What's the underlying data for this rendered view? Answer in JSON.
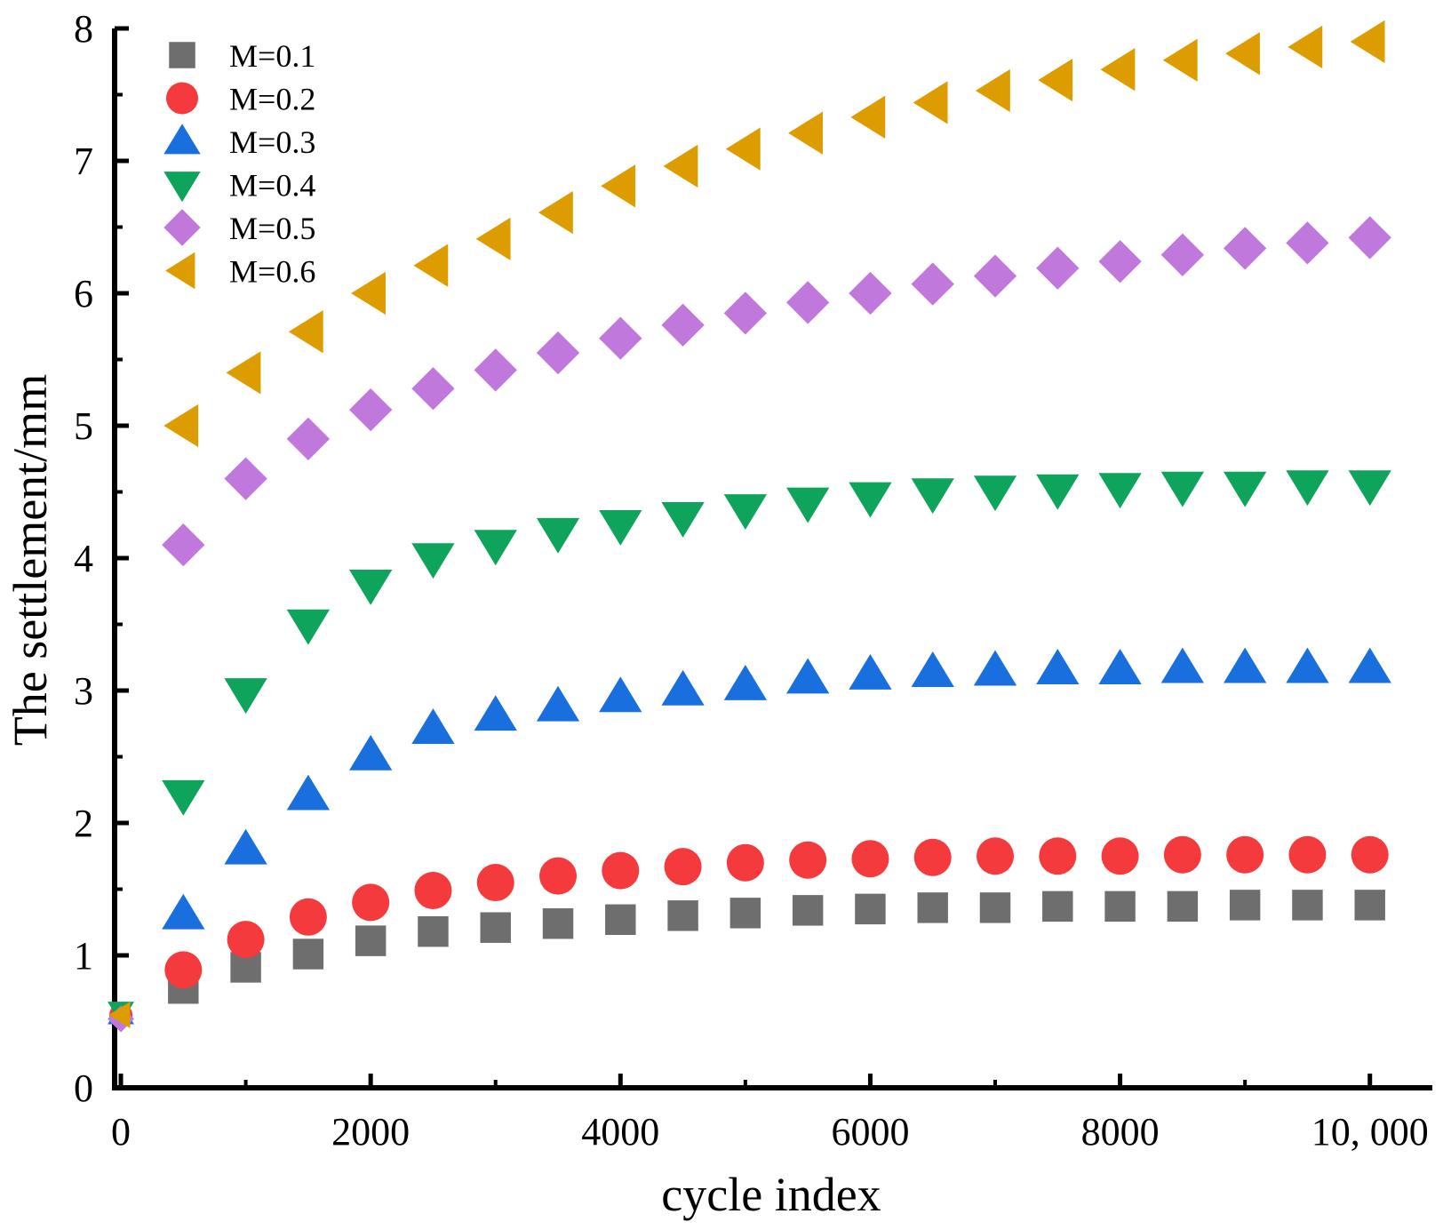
{
  "chart_data": {
    "type": "scatter",
    "title": "",
    "xlabel": "cycle index",
    "ylabel": "The settlement/mm",
    "xlim": [
      -50,
      10500
    ],
    "ylim": [
      0,
      8
    ],
    "x_ticks": [
      0,
      2000,
      4000,
      6000,
      8000,
      10000
    ],
    "x_tick_labels": [
      "0",
      "2000",
      "4000",
      "6000",
      "8000",
      "10, 000"
    ],
    "y_ticks": [
      0,
      1,
      2,
      3,
      4,
      5,
      6,
      7,
      8
    ],
    "y_tick_labels": [
      "0",
      "1",
      "2",
      "3",
      "4",
      "5",
      "6",
      "7",
      "8"
    ],
    "grid": false,
    "legend_position": "top-left",
    "x": [
      0,
      500,
      1000,
      1500,
      2000,
      2500,
      3000,
      3500,
      4000,
      4500,
      5000,
      5500,
      6000,
      6500,
      7000,
      7500,
      8000,
      8500,
      9000,
      9500,
      10000
    ],
    "series": [
      {
        "name": "M=0.1",
        "marker": "square",
        "color": "#6e6e6e",
        "values": [
          0.55,
          0.75,
          0.91,
          1.01,
          1.11,
          1.18,
          1.21,
          1.24,
          1.27,
          1.3,
          1.32,
          1.34,
          1.35,
          1.36,
          1.36,
          1.37,
          1.37,
          1.37,
          1.38,
          1.38,
          1.38
        ]
      },
      {
        "name": "M=0.2",
        "marker": "circle",
        "color": "#f43a3c",
        "values": [
          0.55,
          0.89,
          1.12,
          1.29,
          1.4,
          1.49,
          1.55,
          1.6,
          1.64,
          1.67,
          1.7,
          1.72,
          1.73,
          1.74,
          1.75,
          1.75,
          1.75,
          1.76,
          1.76,
          1.76,
          1.76
        ]
      },
      {
        "name": "M=0.3",
        "marker": "triangle-up",
        "color": "#1a6fdf",
        "values": [
          0.55,
          1.31,
          1.8,
          2.21,
          2.51,
          2.71,
          2.81,
          2.88,
          2.95,
          3.0,
          3.04,
          3.09,
          3.12,
          3.14,
          3.15,
          3.16,
          3.16,
          3.17,
          3.17,
          3.17,
          3.17
        ]
      },
      {
        "name": "M=0.4",
        "marker": "triangle-down",
        "color": "#0fa45c",
        "values": [
          0.58,
          2.21,
          2.98,
          3.5,
          3.8,
          4.0,
          4.1,
          4.19,
          4.25,
          4.31,
          4.37,
          4.42,
          4.46,
          4.49,
          4.51,
          4.52,
          4.53,
          4.54,
          4.54,
          4.55,
          4.55
        ]
      },
      {
        "name": "M=0.5",
        "marker": "diamond",
        "color": "#c078dd",
        "values": [
          0.52,
          4.1,
          4.6,
          4.9,
          5.12,
          5.28,
          5.42,
          5.55,
          5.66,
          5.76,
          5.85,
          5.93,
          6.0,
          6.07,
          6.13,
          6.19,
          6.24,
          6.29,
          6.34,
          6.38,
          6.42
        ]
      },
      {
        "name": "M=0.6",
        "marker": "triangle-left",
        "color": "#dd9d00",
        "values": [
          0.55,
          5.0,
          5.4,
          5.71,
          6.0,
          6.21,
          6.41,
          6.61,
          6.81,
          6.96,
          7.09,
          7.21,
          7.33,
          7.44,
          7.53,
          7.61,
          7.69,
          7.76,
          7.81,
          7.86,
          7.9
        ]
      }
    ]
  }
}
